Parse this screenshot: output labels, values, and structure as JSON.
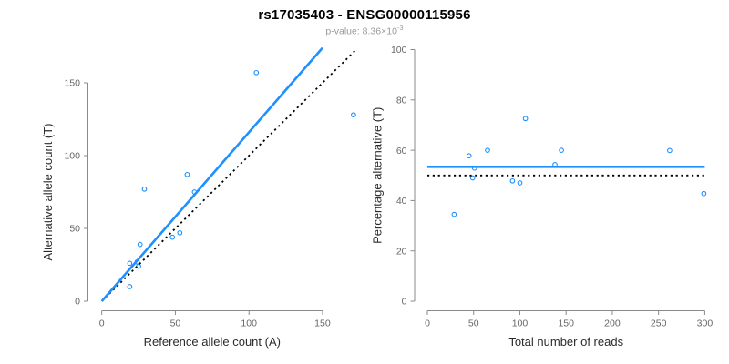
{
  "header": {
    "title": "rs17035403 - ENSG00000115956",
    "subtitle_text": "p-value: 8.36×10",
    "subtitle_exponent": "-3"
  },
  "colors": {
    "accent_blue": "#1E90FF",
    "dotted_line": "#000000",
    "axis_line": "#8a8a8a",
    "tick_label": "#666666",
    "axis_title": "#2b2b2b",
    "title": "#000000",
    "subtitle": "#9a9a9a",
    "background": "#ffffff",
    "point_stroke": "#1E90FF"
  },
  "chart_data": [
    {
      "name": "allele-counts-scatter",
      "type": "scatter",
      "title": "",
      "xlabel": "Reference allele count (A)",
      "ylabel": "Alternative allele count (T)",
      "xlim": [
        0,
        172
      ],
      "ylim": [
        0,
        174
      ],
      "xticks": [
        0,
        50,
        100,
        150
      ],
      "yticks": [
        0,
        50,
        100,
        150
      ],
      "grid": false,
      "marker": "open-circle",
      "points": [
        [
          19,
          10
        ],
        [
          19,
          26
        ],
        [
          24,
          27
        ],
        [
          25,
          24
        ],
        [
          26,
          39
        ],
        [
          48,
          44
        ],
        [
          53,
          47
        ],
        [
          29,
          77
        ],
        [
          63,
          75
        ],
        [
          58,
          87
        ],
        [
          105,
          157
        ],
        [
          171,
          128
        ]
      ],
      "lines": [
        {
          "name": "identity-line",
          "slope": 1,
          "intercept": 0,
          "x_range": [
            0,
            172
          ],
          "style": "dotted",
          "color": "dotted_line"
        },
        {
          "name": "regression-line",
          "slope": 1.16,
          "intercept": 0,
          "x_range": [
            0,
            150
          ],
          "style": "solid",
          "color": "accent_blue"
        }
      ]
    },
    {
      "name": "percentage-vs-depth-scatter",
      "type": "scatter",
      "title": "",
      "xlabel": "Total number of reads",
      "ylabel": "Percentage alternative (T)",
      "xlim": [
        0,
        300
      ],
      "ylim": [
        0,
        100
      ],
      "xticks": [
        0,
        50,
        100,
        150,
        200,
        250,
        300
      ],
      "yticks": [
        0,
        20,
        40,
        60,
        80,
        100
      ],
      "grid": false,
      "marker": "open-circle",
      "points": [
        [
          29,
          34.5
        ],
        [
          45,
          57.8
        ],
        [
          51,
          52.9
        ],
        [
          49,
          49
        ],
        [
          65,
          60
        ],
        [
          92,
          47.8
        ],
        [
          100,
          47
        ],
        [
          106,
          72.6
        ],
        [
          138,
          54.3
        ],
        [
          145,
          60
        ],
        [
          262,
          59.9
        ],
        [
          299,
          42.8
        ]
      ],
      "lines": [
        {
          "name": "expected-50-percent-line",
          "slope": 0,
          "intercept": 50,
          "x_range": [
            0,
            300
          ],
          "style": "dotted",
          "color": "dotted_line"
        },
        {
          "name": "mean-percentage-line",
          "slope": 0,
          "intercept": 53.4,
          "x_range": [
            0,
            300
          ],
          "style": "solid",
          "color": "accent_blue"
        }
      ]
    }
  ]
}
